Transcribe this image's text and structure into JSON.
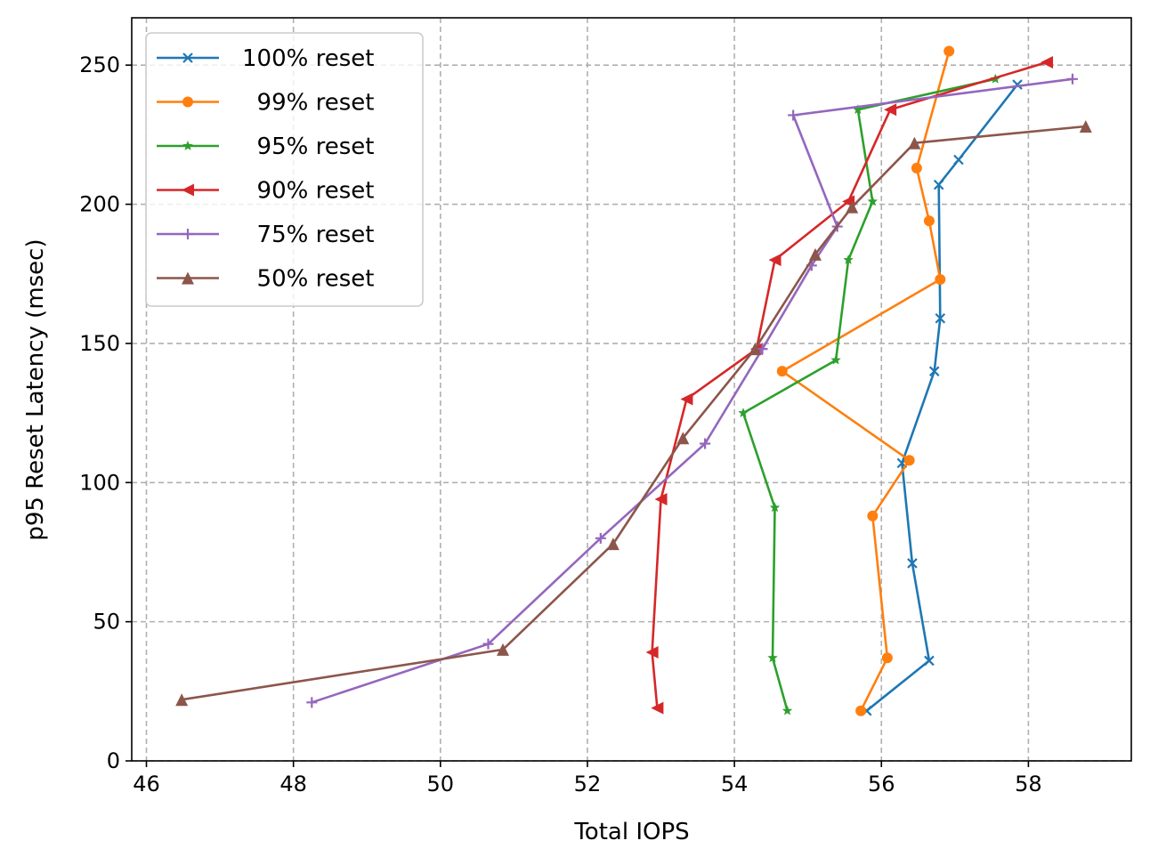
{
  "chart_data": {
    "type": "line",
    "xlabel": "Total IOPS",
    "ylabel": "p95 Reset Latency (msec)",
    "xlim": [
      45.8,
      59.4
    ],
    "ylim": [
      0,
      267
    ],
    "xticks": [
      46,
      48,
      50,
      52,
      54,
      56,
      58
    ],
    "yticks": [
      0,
      50,
      100,
      150,
      200,
      250
    ],
    "grid": true,
    "legend_position": "top-left",
    "series": [
      {
        "name": "100% reset",
        "color": "#1f77b4",
        "marker": "x",
        "points": [
          [
            55.8,
            18
          ],
          [
            56.65,
            36
          ],
          [
            56.42,
            71
          ],
          [
            56.28,
            107
          ],
          [
            56.72,
            140
          ],
          [
            56.8,
            159
          ],
          [
            56.78,
            207
          ],
          [
            57.05,
            216
          ],
          [
            57.85,
            243
          ]
        ]
      },
      {
        "name": "  99% reset",
        "color": "#ff7f0e",
        "marker": "circle",
        "points": [
          [
            55.72,
            18
          ],
          [
            56.08,
            37
          ],
          [
            55.88,
            88
          ],
          [
            56.38,
            108
          ],
          [
            54.65,
            140
          ],
          [
            56.8,
            173
          ],
          [
            56.65,
            194
          ],
          [
            56.48,
            213
          ],
          [
            56.92,
            255
          ]
        ]
      },
      {
        "name": "  95% reset",
        "color": "#2ca02c",
        "marker": "star",
        "points": [
          [
            54.72,
            18
          ],
          [
            54.52,
            37
          ],
          [
            54.55,
            91
          ],
          [
            54.12,
            125
          ],
          [
            55.38,
            144
          ],
          [
            55.55,
            180
          ],
          [
            55.88,
            201
          ],
          [
            55.68,
            234
          ],
          [
            57.55,
            245
          ]
        ]
      },
      {
        "name": "  90% reset",
        "color": "#d62728",
        "marker": "triangle-left",
        "points": [
          [
            52.95,
            19
          ],
          [
            52.88,
            39
          ],
          [
            53.0,
            94
          ],
          [
            53.35,
            130
          ],
          [
            54.3,
            148
          ],
          [
            54.55,
            180
          ],
          [
            55.55,
            201
          ],
          [
            56.12,
            234
          ],
          [
            58.25,
            251
          ]
        ]
      },
      {
        "name": "  75% reset",
        "color": "#9467bd",
        "marker": "plus",
        "points": [
          [
            48.25,
            21
          ],
          [
            50.65,
            42
          ],
          [
            52.18,
            80
          ],
          [
            53.6,
            114
          ],
          [
            54.38,
            148
          ],
          [
            55.05,
            178
          ],
          [
            55.4,
            192
          ],
          [
            54.8,
            232
          ],
          [
            58.6,
            245
          ]
        ]
      },
      {
        "name": "  50% reset",
        "color": "#8c564b",
        "marker": "triangle-up",
        "points": [
          [
            46.48,
            22
          ],
          [
            50.85,
            40
          ],
          [
            52.35,
            78
          ],
          [
            53.3,
            116
          ],
          [
            54.28,
            148
          ],
          [
            55.1,
            182
          ],
          [
            55.6,
            199
          ],
          [
            56.45,
            222
          ],
          [
            58.78,
            228
          ]
        ]
      }
    ]
  }
}
